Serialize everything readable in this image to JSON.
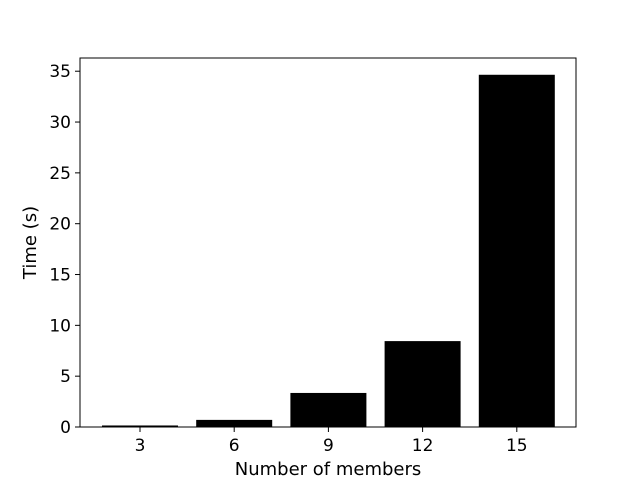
{
  "chart_data": {
    "type": "bar",
    "categories": [
      "3",
      "6",
      "9",
      "12",
      "15"
    ],
    "values": [
      0.15,
      0.7,
      3.35,
      8.45,
      34.65
    ],
    "title": "",
    "xlabel": "Number of members",
    "ylabel": "Time (s)",
    "ylim": [
      0,
      36.3
    ],
    "yticks": [
      0,
      5,
      10,
      15,
      20,
      25,
      30,
      35
    ],
    "bar_color": "#000000",
    "grid": false,
    "legend": "none"
  }
}
